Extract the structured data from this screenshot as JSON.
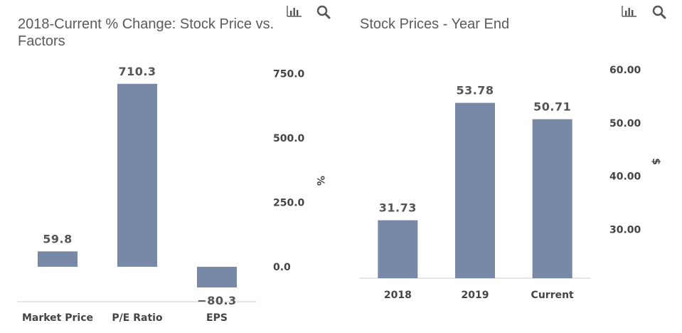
{
  "charts": {
    "left": {
      "title": "2018-Current % Change: Stock Price vs. Factors",
      "icons": [
        "bar-chart-icon",
        "search-icon"
      ]
    },
    "right": {
      "title": "Stock Prices - Year End",
      "icons": [
        "bar-chart-icon",
        "search-icon"
      ]
    }
  },
  "colors": {
    "bar": "#7789a6",
    "axis_text": "#444444",
    "label_text": "#555555",
    "baseline": "#cccccc"
  },
  "chart_data": [
    {
      "type": "bar",
      "title": "2018-Current % Change: Stock Price vs. Factors",
      "categories": [
        "Market Price",
        "P/E Ratio",
        "EPS"
      ],
      "values": [
        59.8,
        710.3,
        -80.3
      ],
      "value_labels": [
        "59.8",
        "710.3",
        "−80.3"
      ],
      "ylabel": "%",
      "yticks": [
        "0.0",
        "250.0",
        "500.0",
        "750.0"
      ],
      "ytick_values": [
        0,
        250,
        500,
        750
      ],
      "ylim": [
        -130,
        870
      ],
      "y_axis_side": "right",
      "grid": false
    },
    {
      "type": "bar",
      "title": "Stock Prices - Year End",
      "categories": [
        "2018",
        "2019",
        "Current"
      ],
      "values": [
        31.73,
        53.78,
        50.71
      ],
      "value_labels": [
        "31.73",
        "53.78",
        "50.71"
      ],
      "ylabel": "$",
      "yticks": [
        "30.00",
        "40.00",
        "50.00",
        "60.00"
      ],
      "ytick_values": [
        30,
        40,
        50,
        60
      ],
      "ylim": [
        20.85,
        60
      ],
      "y_axis_side": "right",
      "grid": false
    }
  ]
}
